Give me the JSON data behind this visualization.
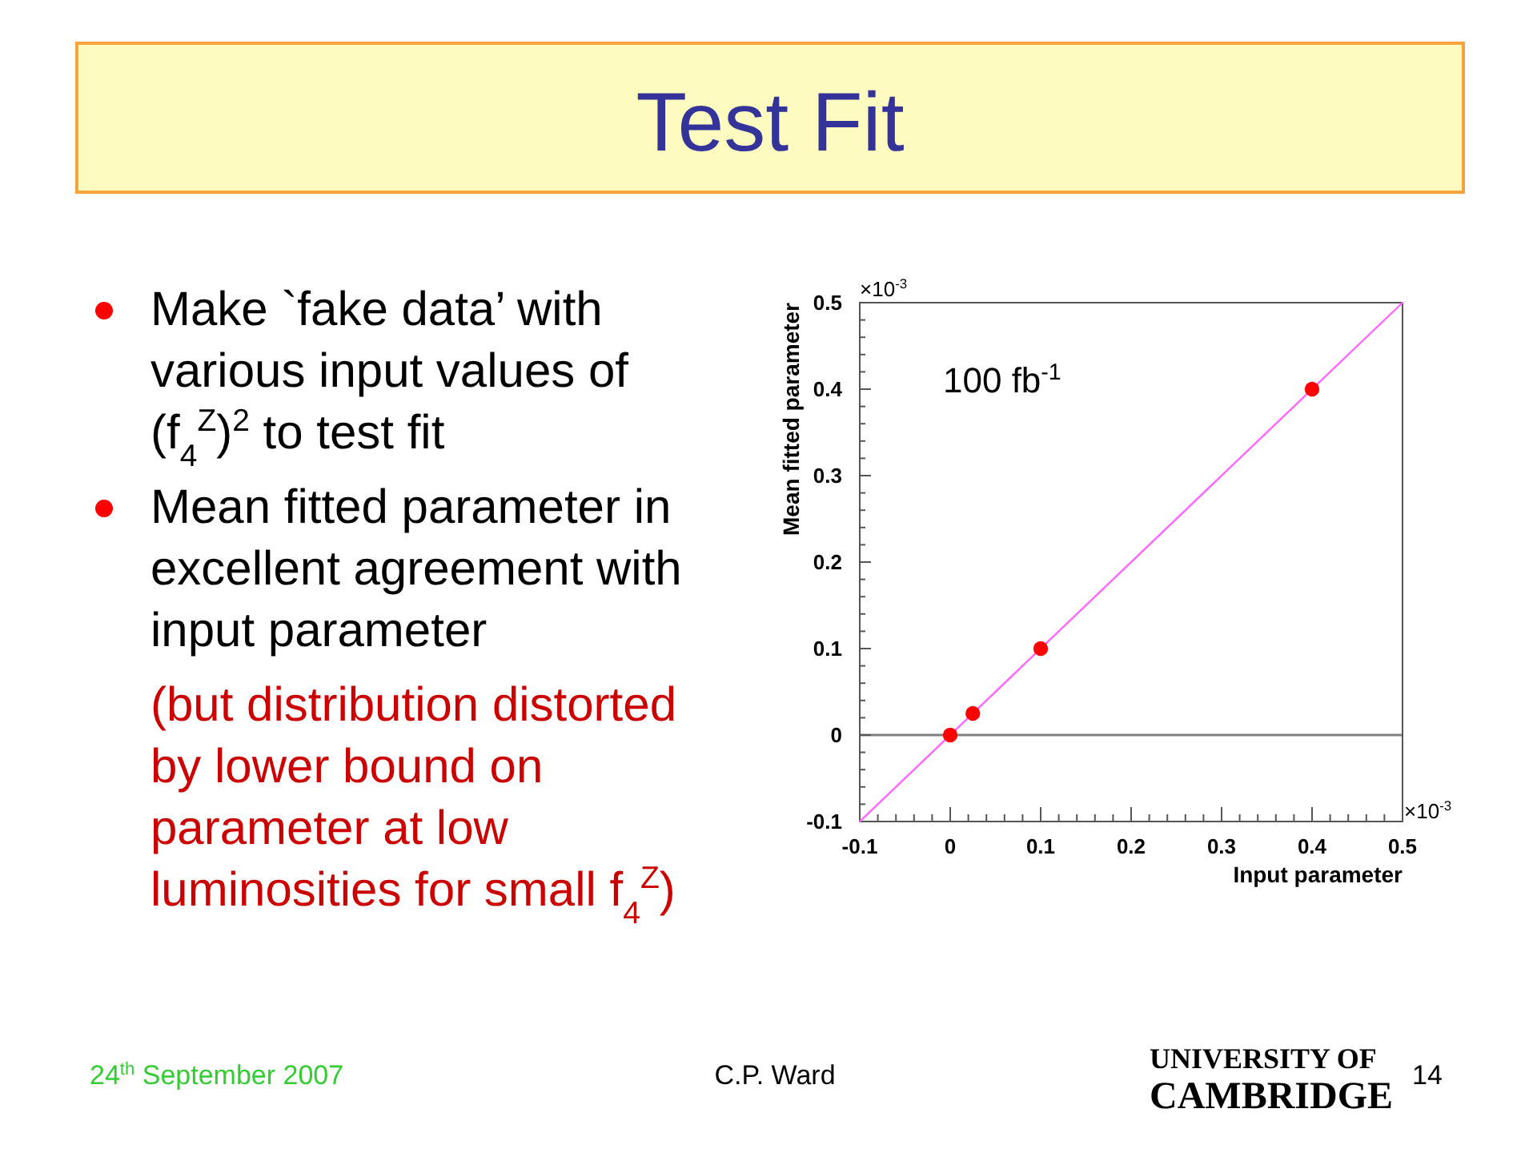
{
  "chart_data": {
    "type": "scatter",
    "title": "Test Fit",
    "xlabel": "Input parameter",
    "ylabel": "Mean fitted parameter",
    "annotations": [
      "Make `fake data’ with various input values of (f$_{4}$$^{Z}$)$^{2}$ to test fit",
      "Mean fitted parameter in excellent agreement with input parameter",
      "(but distribution distorted by lower bound on parameter at low luminosities for small f$_{4}$$^{Z}$)",
      "100 fb$^{-1}$",
      "×10$^{-3}$",
      "×10$^{-3}$",
      "24$^{th}$ September 2007",
      "C.P. Ward",
      "UNIVERSITY OF CAMBRIDGE",
      "14"
    ],
    "xlim": [
      -0.1,
      0.5
    ],
    "ylim": [
      -0.1,
      0.5
    ],
    "xticks": [
      -0.1,
      {
        "value": -0.08,
        "label": null
      },
      {
        "value": -0.06,
        "label": null
      },
      {
        "value": -0.04,
        "label": null
      },
      {
        "value": -0.02,
        "label": null
      },
      0,
      {
        "value": 0.02,
        "label": null
      },
      {
        "value": 0.04,
        "label": null
      },
      {
        "value": 0.06,
        "label": null
      },
      {
        "value": 0.08,
        "label": null
      },
      0.1,
      {
        "value": 0.12,
        "label": null
      },
      {
        "value": 0.14,
        "label": null
      },
      {
        "value": 0.16,
        "label": null
      },
      {
        "value": 0.18,
        "label": null
      },
      0.2,
      {
        "value": 0.22,
        "label": null
      },
      {
        "value": 0.24,
        "label": null
      },
      {
        "value": 0.26,
        "label": null
      },
      {
        "value": 0.28,
        "label": null
      },
      0.3,
      {
        "value": 0.32,
        "label": null
      },
      {
        "value": 0.34,
        "label": null
      },
      {
        "value": 0.36,
        "label": null
      },
      {
        "value": 0.38,
        "label": null
      },
      0.4,
      {
        "value": 0.42,
        "label": null
      },
      {
        "value": 0.44,
        "label": null
      },
      {
        "value": 0.46,
        "label": null
      },
      {
        "value": 0.48,
        "label": null
      },
      0.5
    ],
    "yticks": [
      -0.1,
      {
        "value": -0.08,
        "label": null
      },
      {
        "value": -0.06,
        "label": null
      },
      {
        "value": -0.04,
        "label": null
      },
      {
        "value": -0.02,
        "label": null
      },
      0,
      {
        "value": 0.02,
        "label": null
      },
      {
        "value": 0.04,
        "label": null
      },
      {
        "value": 0.06,
        "label": null
      },
      {
        "value": 0.08,
        "label": null
      },
      0.1,
      {
        "value": 0.12,
        "label": null
      },
      {
        "value": 0.14,
        "label": null
      },
      {
        "value": 0.16,
        "label": null
      },
      {
        "value": 0.18,
        "label": null
      },
      0.2,
      {
        "value": 0.22,
        "label": null
      },
      {
        "value": 0.24,
        "label": null
      },
      {
        "value": 0.26,
        "label": null
      },
      {
        "value": 0.28,
        "label": null
      },
      0.3,
      {
        "value": 0.32,
        "label": null
      },
      {
        "value": 0.34,
        "label": null
      },
      {
        "value": 0.36,
        "label": null
      },
      {
        "value": 0.38,
        "label": null
      },
      0.4,
      {
        "value": 0.42,
        "label": null
      },
      {
        "value": 0.44,
        "label": null
      },
      {
        "value": 0.46,
        "label": null
      },
      {
        "value": 0.48,
        "label": null
      },
      0.5
    ],
    "ref_lines": [
      {
        "axis": "y",
        "value": 0,
        "color": "#808080"
      }
    ],
    "marker": "circle",
    "series": [
      {
        "type": "line",
        "x": [
          -0.1,
          0.5
        ],
        "values": [
          -0.1,
          0.5
        ],
        "color": "#ff66ff",
        "marker": "none"
      },
      {
        "x": [
          0,
          0.025,
          0.1,
          0.4
        ],
        "values": [
          0,
          0.025,
          0.1,
          0.4
        ],
        "color": "#ff0000"
      }
    ]
  }
}
